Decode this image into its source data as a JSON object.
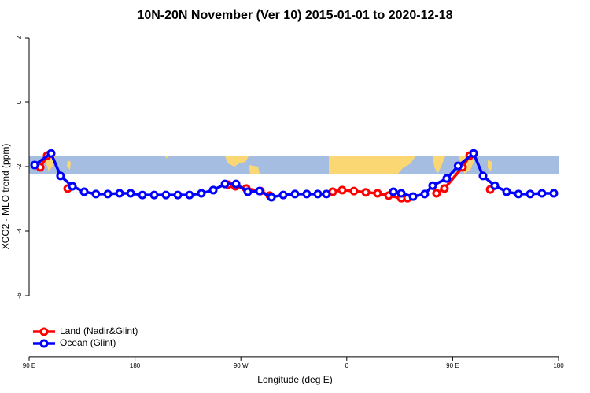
{
  "chart_data": {
    "type": "line",
    "title": "10N-20N November (Ver 10)   2015-01-01 to 2020-12-18",
    "x_label": "Longitude (deg E)",
    "y_label": "XCO2 - MLO trend (ppm)",
    "xlim": [
      90,
      540
    ],
    "ylim": [
      -7.9,
      2.2
    ],
    "xticks": [
      {
        "value": 90,
        "label": "90 E"
      },
      180,
      {
        "value": 270,
        "label": "90 W"
      },
      {
        "value": 360,
        "label": "0"
      },
      {
        "value": 450,
        "label": "90 E"
      },
      {
        "value": 540,
        "label": "180"
      }
    ],
    "yticks": [
      2,
      0,
      -2,
      -4,
      -6
    ],
    "legend": "bottom-left",
    "series": [
      {
        "name": "Land (Nadir&Glint)",
        "color": "#ff0000",
        "x": [
          99.4,
          105.4,
          null,
          122.8,
          null,
          259.2,
          265.3,
          274.6,
          286.6,
          294.6,
          null,
          348.1,
          356.1,
          366.1,
          376.2,
          386.2,
          395.6,
          406.3,
          411.6,
          null,
          436.3,
          443.0,
          458.4,
          464.5,
          null,
          481.9
        ],
        "values": [
          -2.02,
          -1.66,
          null,
          -2.68,
          null,
          -2.56,
          -2.61,
          -2.68,
          -2.76,
          -2.9,
          null,
          -2.78,
          -2.73,
          -2.76,
          -2.8,
          -2.83,
          -2.9,
          -2.98,
          -2.98,
          null,
          -2.83,
          -2.68,
          -2.02,
          -1.66,
          null,
          -2.71
        ]
      },
      {
        "name": "Ocean (Glint)",
        "color": "#0000ff",
        "x": [
          94.7,
          108.7,
          116.7,
          126.8,
          136.8,
          146.8,
          156.9,
          166.9,
          176.3,
          186.3,
          196.3,
          206.3,
          216.4,
          226.4,
          236.4,
          246.5,
          256.5,
          265.9,
          275.9,
          285.9,
          296.0,
          306.0,
          316.0,
          326.0,
          335.4,
          342.7,
          null,
          399.6,
          406.3,
          416.3,
          426.3,
          433.0,
          445.0,
          454.7,
          467.8,
          475.8,
          485.8,
          495.9,
          505.9,
          515.9,
          525.9,
          536.0
        ],
        "values": [
          -1.95,
          -1.59,
          -2.29,
          -2.61,
          -2.78,
          -2.85,
          -2.85,
          -2.83,
          -2.83,
          -2.88,
          -2.88,
          -2.88,
          -2.88,
          -2.88,
          -2.83,
          -2.73,
          -2.54,
          -2.54,
          -2.78,
          -2.76,
          -2.95,
          -2.88,
          -2.85,
          -2.85,
          -2.85,
          -2.85,
          null,
          -2.78,
          -2.83,
          -2.93,
          -2.85,
          -2.59,
          -2.37,
          -1.98,
          -1.59,
          -2.29,
          -2.59,
          -2.78,
          -2.85,
          -2.85,
          -2.83,
          -2.83
        ]
      }
    ]
  }
}
